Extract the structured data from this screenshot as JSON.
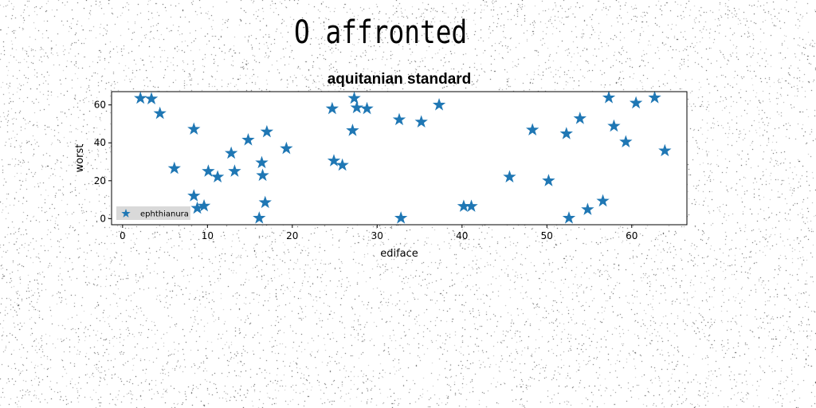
{
  "page": {
    "heading": "O affronted"
  },
  "chart_data": {
    "type": "scatter",
    "title": "aquitanian standard",
    "xlabel": "ediface",
    "ylabel": "worst",
    "xlim": [
      -1.3,
      66.5
    ],
    "ylim": [
      -3.2,
      67
    ],
    "xticks": [
      0,
      10,
      20,
      30,
      40,
      50,
      60
    ],
    "yticks": [
      0,
      20,
      40,
      60
    ],
    "grid": false,
    "legend_position": "lower-left",
    "marker": "star",
    "color": "#1f77b4",
    "series": [
      {
        "name": "ephthianura",
        "points": [
          [
            2.1,
            63.5
          ],
          [
            3.4,
            63.2
          ],
          [
            4.4,
            55.5
          ],
          [
            6.1,
            26.5
          ],
          [
            8.4,
            47.2
          ],
          [
            8.4,
            12.0
          ],
          [
            8.8,
            5.5
          ],
          [
            9.6,
            6.7
          ],
          [
            10.1,
            25.0
          ],
          [
            11.2,
            22.0
          ],
          [
            12.8,
            34.5
          ],
          [
            13.2,
            25.0
          ],
          [
            14.8,
            41.5
          ],
          [
            16.1,
            0.3
          ],
          [
            16.4,
            29.5
          ],
          [
            16.5,
            22.8
          ],
          [
            16.8,
            8.5
          ],
          [
            17.0,
            45.8
          ],
          [
            19.3,
            37.0
          ],
          [
            24.7,
            58.0
          ],
          [
            24.9,
            30.5
          ],
          [
            25.9,
            28.2
          ],
          [
            27.1,
            46.5
          ],
          [
            27.3,
            63.5
          ],
          [
            27.6,
            58.5
          ],
          [
            28.8,
            58.0
          ],
          [
            32.6,
            52.2
          ],
          [
            32.8,
            0.3
          ],
          [
            35.2,
            51.0
          ],
          [
            37.3,
            60.0
          ],
          [
            40.2,
            6.5
          ],
          [
            41.1,
            6.5
          ],
          [
            45.6,
            22.0
          ],
          [
            48.3,
            46.8
          ],
          [
            50.2,
            20.0
          ],
          [
            52.3,
            44.8
          ],
          [
            52.6,
            0.3
          ],
          [
            53.9,
            52.8
          ],
          [
            54.8,
            4.8
          ],
          [
            56.6,
            9.3
          ],
          [
            57.3,
            63.8
          ],
          [
            57.9,
            48.8
          ],
          [
            59.3,
            40.5
          ],
          [
            60.5,
            61.0
          ],
          [
            62.7,
            63.8
          ],
          [
            63.9,
            35.8
          ]
        ]
      }
    ]
  }
}
